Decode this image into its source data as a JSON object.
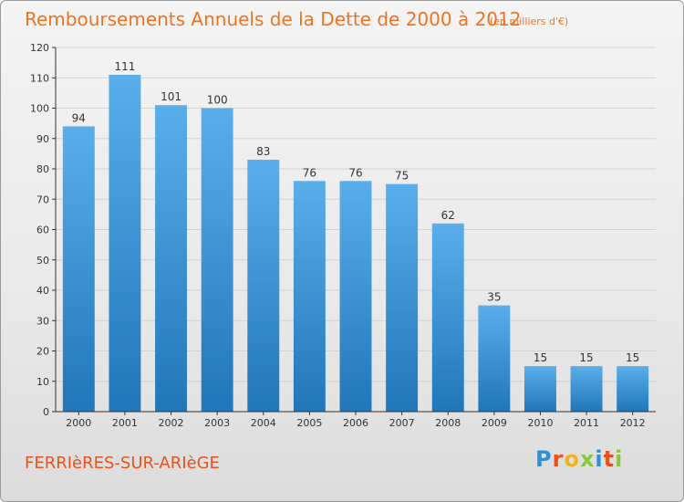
{
  "header": {
    "title": "Remboursements Annuels de la Dette de 2000 à 2012",
    "subtitle": "(en milliers d'€)"
  },
  "footer": {
    "town": "FERRIèRES-SUR-ARIèGE",
    "logo_letters": [
      "P",
      "r",
      "o",
      "x",
      "i",
      "t",
      "i"
    ],
    "logo_colors": [
      "#2e8fd6",
      "#e8521c",
      "#f2b21b",
      "#8cc63f",
      "#2e8fd6",
      "#e8521c",
      "#8cc63f"
    ]
  },
  "colors": {
    "bar_top": "#5aaeea",
    "bar_bottom": "#2176b9",
    "grid": "#d2d2d2",
    "axis": "#333333",
    "title": "#f2731f"
  },
  "chart_data": {
    "type": "bar",
    "title": "Remboursements Annuels de la Dette de 2000 à 2012",
    "subtitle": "(en milliers d'€)",
    "categories": [
      "2000",
      "2001",
      "2002",
      "2003",
      "2004",
      "2005",
      "2006",
      "2007",
      "2008",
      "2009",
      "2010",
      "2011",
      "2012"
    ],
    "values": [
      94,
      111,
      101,
      100,
      83,
      76,
      76,
      75,
      62,
      35,
      15,
      15,
      15
    ],
    "ylim": [
      0,
      120
    ],
    "yticks": [
      0,
      10,
      20,
      30,
      40,
      50,
      60,
      70,
      80,
      90,
      100,
      110,
      120
    ],
    "grid": true,
    "legend": "none"
  }
}
